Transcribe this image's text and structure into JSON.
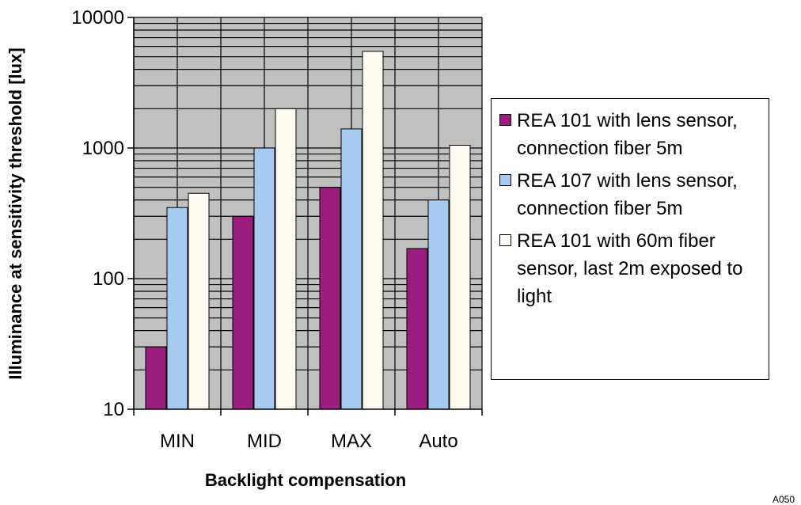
{
  "chart_data": {
    "type": "bar",
    "scale": "log",
    "categories": [
      "MIN",
      "MID",
      "MAX",
      "Auto"
    ],
    "series": [
      {
        "name": "REA 101 with lens sensor, connection fiber 5m",
        "color": "#9b1e7e",
        "values": [
          30,
          300,
          500,
          170
        ]
      },
      {
        "name": "REA 107 with lens sensor, connection fiber 5m",
        "color": "#a6caf0",
        "values": [
          350,
          1000,
          1400,
          400
        ]
      },
      {
        "name": "REA 101 with 60m fiber sensor, last 2m exposed to light",
        "color": "#fffbf0",
        "values": [
          450,
          2000,
          5500,
          1050
        ]
      }
    ],
    "yticks": [
      "10",
      "100",
      "1000",
      "10000"
    ],
    "ylim": [
      10,
      10000
    ],
    "xlabel": "Backlight compensation",
    "ylabel": "Illuminance at sensitivity threshold [lux]",
    "grid": true,
    "plot_background": "#c0c0c0",
    "legend_position": "right"
  },
  "corner_code": "A050"
}
